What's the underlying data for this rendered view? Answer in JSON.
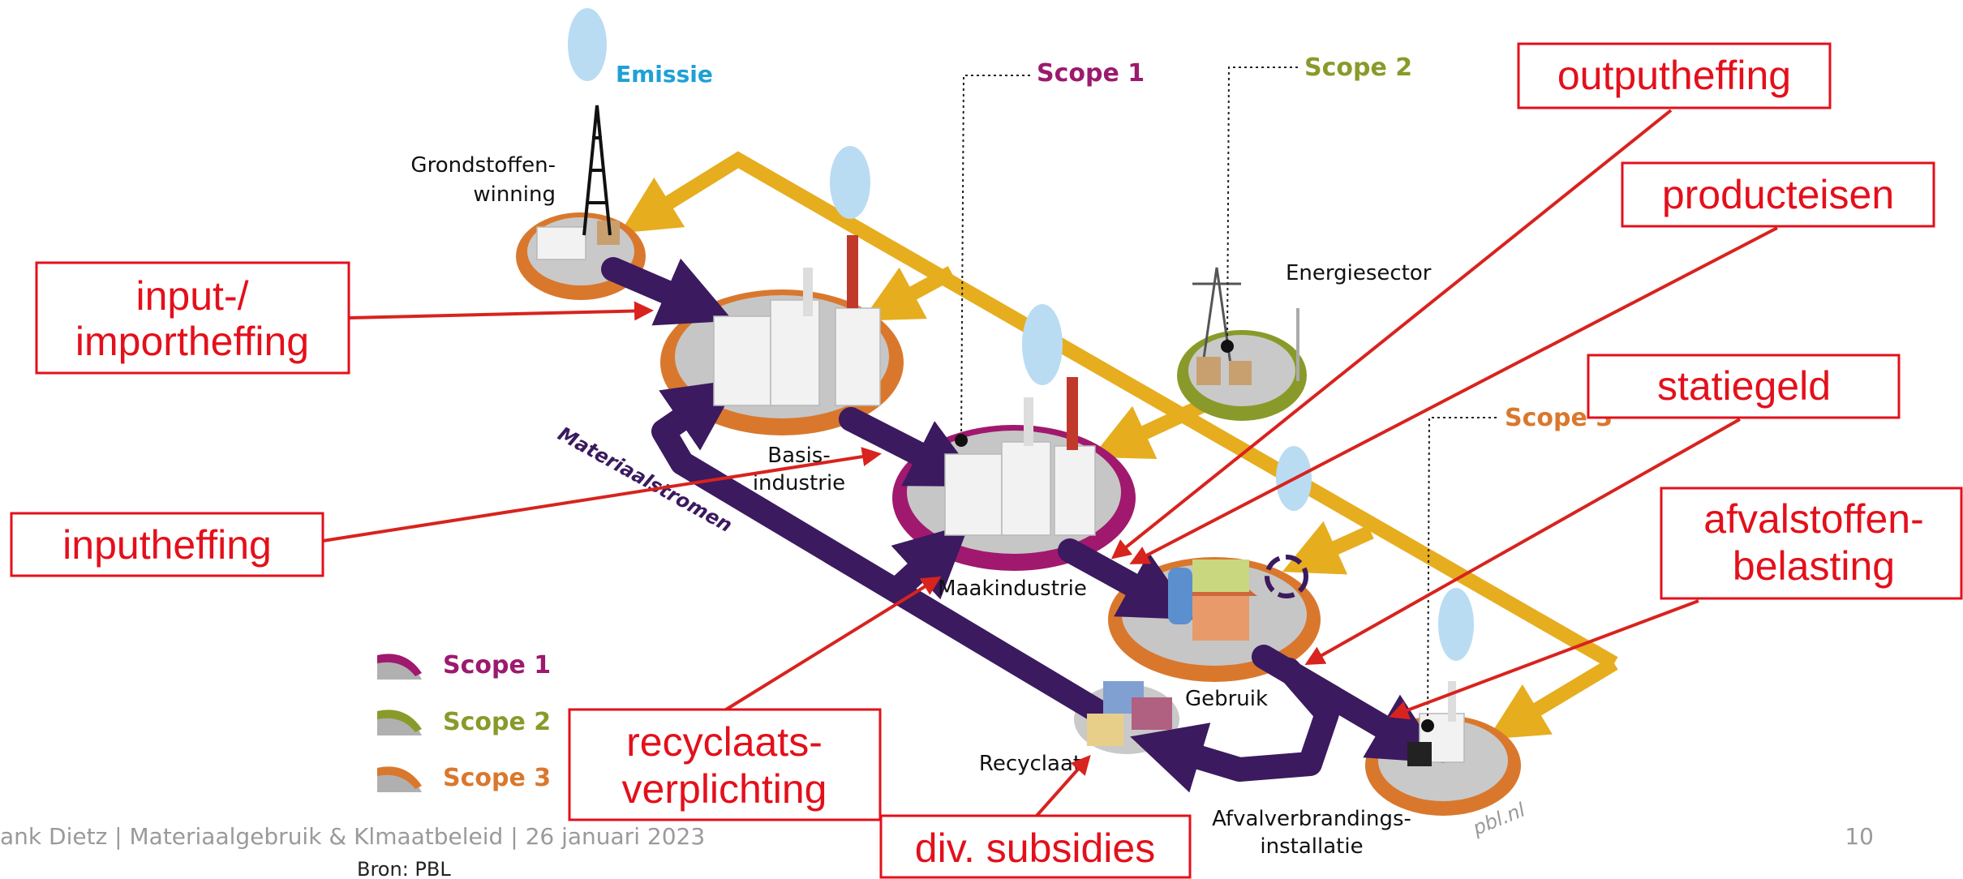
{
  "diagram": {
    "emission_label": "Emissie",
    "scope_callouts": [
      "Scope 1",
      "Scope 2",
      "Scope 3"
    ],
    "nodes": [
      [
        "Grondstoffen-",
        "winning"
      ],
      [
        "Basis-",
        "industrie"
      ],
      [
        "Maakindustrie"
      ],
      [
        "Energiesector"
      ],
      [
        "Gebruik"
      ],
      [
        "Recyclaat"
      ],
      [
        "Afvalverbrandings-",
        "installatie"
      ]
    ],
    "flow_label": "Materiaalstromen",
    "watermark": "pbl.nl",
    "legend": [
      "Scope 1",
      "Scope 2",
      "Scope 3"
    ]
  },
  "policies": [
    [
      "outputheffing"
    ],
    [
      "producteisen"
    ],
    [
      "statiegeld"
    ],
    [
      "afvalstoffen-",
      "belasting"
    ],
    [
      "input-/",
      "importheffing"
    ],
    [
      "inputheffing"
    ],
    [
      "recyclaats-",
      "verplichting"
    ],
    [
      "div. subsidies"
    ]
  ],
  "footer": {
    "text": "ank Dietz | Materiaalgebruik & Klmaatbeleid | 26 januari 2023",
    "page": "10",
    "source": "Bron: PBL"
  }
}
